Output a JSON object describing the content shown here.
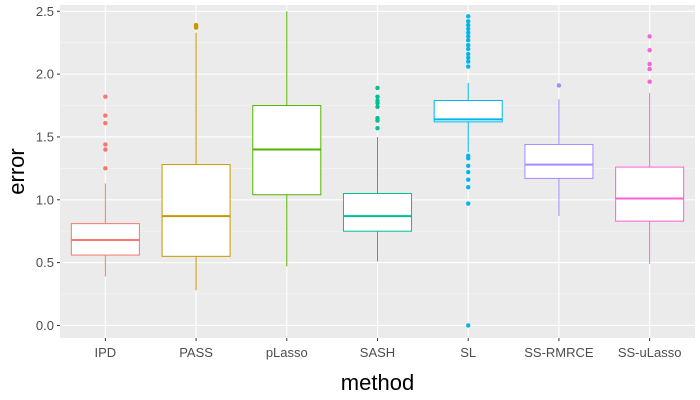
{
  "chart_data": {
    "type": "boxplot",
    "xlabel": "method",
    "ylabel": "error",
    "ylim": [
      -0.1,
      2.55
    ],
    "yticks": [
      0.0,
      0.5,
      1.0,
      1.5,
      2.0,
      2.5
    ],
    "ytick_labels": [
      "0.0",
      "0.5",
      "1.0",
      "1.5",
      "2.0",
      "2.5"
    ],
    "grid": true,
    "legend": "none",
    "categories": [
      "IPD",
      "PASS",
      "pLasso",
      "SASH",
      "SL",
      "SS-RMRCE",
      "SS-uLasso"
    ],
    "boxes": [
      {
        "name": "IPD",
        "color": "#F8766D",
        "whisker_low": 0.39,
        "q1": 0.56,
        "median": 0.68,
        "q3": 0.81,
        "whisker_high": 1.13,
        "outliers": [
          1.25,
          1.4,
          1.44,
          1.61,
          1.67,
          1.82
        ]
      },
      {
        "name": "PASS",
        "color": "#C49A00",
        "whisker_low": 0.28,
        "q1": 0.55,
        "median": 0.87,
        "q3": 1.28,
        "whisker_high": 2.33,
        "outliers": [
          2.37,
          2.38,
          2.39
        ]
      },
      {
        "name": "pLasso",
        "color": "#53B400",
        "whisker_low": 0.47,
        "q1": 1.04,
        "median": 1.4,
        "q3": 1.75,
        "whisker_high": 2.5,
        "outliers": []
      },
      {
        "name": "SASH",
        "color": "#00C094",
        "whisker_low": 0.51,
        "q1": 0.75,
        "median": 0.87,
        "q3": 1.05,
        "whisker_high": 1.5,
        "outliers": [
          1.57,
          1.63,
          1.65,
          1.74,
          1.77,
          1.79,
          1.82,
          1.89
        ]
      },
      {
        "name": "SL",
        "color": "#00B6EB",
        "whisker_low": 1.38,
        "q1": 1.62,
        "median": 1.64,
        "q3": 1.79,
        "whisker_high": 1.93,
        "outliers": [
          0.0,
          0.97,
          1.1,
          1.16,
          1.22,
          1.27,
          1.33,
          1.35,
          2.06,
          2.1,
          2.13,
          2.16,
          2.2,
          2.23,
          2.27,
          2.3,
          2.33,
          2.36,
          2.39,
          2.42,
          2.46
        ]
      },
      {
        "name": "SS-RMRCE",
        "color": "#A58AFF",
        "whisker_low": 0.87,
        "q1": 1.17,
        "median": 1.28,
        "q3": 1.44,
        "whisker_high": 1.8,
        "outliers": [
          1.91
        ]
      },
      {
        "name": "SS-uLasso",
        "color": "#FB61D7",
        "whisker_low": 0.49,
        "q1": 0.83,
        "median": 1.01,
        "q3": 1.26,
        "whisker_high": 1.85,
        "outliers": [
          1.94,
          2.04,
          2.08,
          2.19,
          2.3
        ]
      }
    ]
  }
}
